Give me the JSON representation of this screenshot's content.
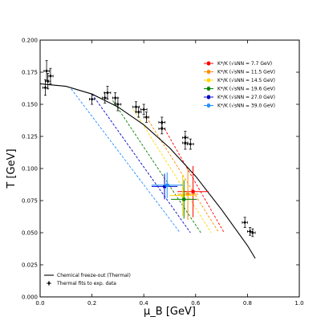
{
  "chart_data": {
    "type": "scatter",
    "xlabel": "μ_B [GeV]",
    "ylabel": "T [GeV]",
    "xlim": [
      0.0,
      1.0
    ],
    "ylim": [
      0.0,
      0.2
    ],
    "xticks": [
      "0.0",
      "0.2",
      "0.4",
      "0.6",
      "0.8",
      "1.0"
    ],
    "yticks": [
      "0.000",
      "0.025",
      "0.050",
      "0.075",
      "0.100",
      "0.125",
      "0.150",
      "0.175",
      "0.200"
    ],
    "grid": false,
    "legend_upper": {
      "placement": "top-right",
      "entries": [
        {
          "label": "K*/K (√sNN = 7.7 GeV)",
          "color": "#ff0000"
        },
        {
          "label": "K*/K (√sNN = 11.5 GeV)",
          "color": "#ff8c00"
        },
        {
          "label": "K*/K (√sNN = 14.5 GeV)",
          "color": "#ffd700"
        },
        {
          "label": "K*/K (√sNN = 19.6 GeV)",
          "color": "#008000"
        },
        {
          "label": "K*/K (√sNN = 27.0 GeV)",
          "color": "#0000cd"
        },
        {
          "label": "K*/K (√sNN = 39.0 GeV)",
          "color": "#1e90ff"
        }
      ]
    },
    "legend_lower": {
      "placement": "bottom-left",
      "entries": [
        {
          "label": "Chemical freeze-out (Thermal)",
          "style": "line"
        },
        {
          "label": "Thermal fits to exp. data",
          "style": "marker"
        }
      ]
    },
    "freezeout_curve": {
      "color": "#000000",
      "x": [
        0.0,
        0.1,
        0.2,
        0.3,
        0.4,
        0.5,
        0.6,
        0.7,
        0.8,
        0.83
      ],
      "y": [
        0.166,
        0.164,
        0.158,
        0.148,
        0.134,
        0.116,
        0.094,
        0.068,
        0.04,
        0.03
      ]
    },
    "thermal_fits": [
      {
        "x": 0.02,
        "y": 0.163,
        "xerr": 0.01,
        "yerr": 0.006
      },
      {
        "x": 0.025,
        "y": 0.176,
        "xerr": 0.01,
        "yerr": 0.008
      },
      {
        "x": 0.03,
        "y": 0.168,
        "xerr": 0.01,
        "yerr": 0.006
      },
      {
        "x": 0.04,
        "y": 0.172,
        "xerr": 0.01,
        "yerr": 0.006
      },
      {
        "x": 0.2,
        "y": 0.154,
        "xerr": 0.01,
        "yerr": 0.004
      },
      {
        "x": 0.25,
        "y": 0.155,
        "xerr": 0.01,
        "yerr": 0.004
      },
      {
        "x": 0.26,
        "y": 0.159,
        "xerr": 0.012,
        "yerr": 0.005
      },
      {
        "x": 0.29,
        "y": 0.155,
        "xerr": 0.01,
        "yerr": 0.004
      },
      {
        "x": 0.3,
        "y": 0.15,
        "xerr": 0.012,
        "yerr": 0.005
      },
      {
        "x": 0.37,
        "y": 0.148,
        "xerr": 0.012,
        "yerr": 0.004
      },
      {
        "x": 0.38,
        "y": 0.144,
        "xerr": 0.01,
        "yerr": 0.004
      },
      {
        "x": 0.4,
        "y": 0.146,
        "xerr": 0.012,
        "yerr": 0.004
      },
      {
        "x": 0.41,
        "y": 0.14,
        "xerr": 0.01,
        "yerr": 0.004
      },
      {
        "x": 0.47,
        "y": 0.136,
        "xerr": 0.012,
        "yerr": 0.004
      },
      {
        "x": 0.47,
        "y": 0.131,
        "xerr": 0.012,
        "yerr": 0.004
      },
      {
        "x": 0.56,
        "y": 0.12,
        "xerr": 0.01,
        "yerr": 0.005
      },
      {
        "x": 0.56,
        "y": 0.124,
        "xerr": 0.01,
        "yerr": 0.005
      },
      {
        "x": 0.58,
        "y": 0.119,
        "xerr": 0.012,
        "yerr": 0.004
      },
      {
        "x": 0.79,
        "y": 0.058,
        "xerr": 0.01,
        "yerr": 0.004
      },
      {
        "x": 0.81,
        "y": 0.051,
        "xerr": 0.01,
        "yerr": 0.003
      },
      {
        "x": 0.82,
        "y": 0.05,
        "xerr": 0.01,
        "yerr": 0.003
      }
    ],
    "kstar_points": [
      {
        "energy": "7.7",
        "x": 0.59,
        "y": 0.082,
        "xerr": 0.06,
        "yerr": 0.02,
        "color": "#ff0000"
      },
      {
        "energy": "11.5",
        "x": 0.57,
        "y": 0.08,
        "xerr": 0.04,
        "yerr": 0.02,
        "color": "#ff8c00"
      },
      {
        "energy": "14.5",
        "x": 0.55,
        "y": 0.079,
        "xerr": 0.05,
        "yerr": 0.016,
        "color": "#ffd700"
      },
      {
        "energy": "19.6",
        "x": 0.555,
        "y": 0.076,
        "xerr": 0.05,
        "yerr": 0.015,
        "color": "#008000"
      },
      {
        "energy": "27.0",
        "x": 0.48,
        "y": 0.086,
        "xerr": 0.05,
        "yerr": 0.01,
        "color": "#0000cd"
      },
      {
        "energy": "39.0",
        "x": 0.49,
        "y": 0.087,
        "xerr": 0.06,
        "yerr": 0.01,
        "color": "#1e90ff"
      }
    ],
    "dashed_lines": [
      {
        "energy": "7.7",
        "color": "#ff0000",
        "x": [
          0.48,
          0.71
        ],
        "y": [
          0.131,
          0.05
        ]
      },
      {
        "energy": "11.5",
        "color": "#ff8c00",
        "x": [
          0.41,
          0.69
        ],
        "y": [
          0.14,
          0.05
        ]
      },
      {
        "energy": "14.5",
        "color": "#ffd700",
        "x": [
          0.36,
          0.66
        ],
        "y": [
          0.146,
          0.05
        ]
      },
      {
        "energy": "19.6",
        "color": "#008000",
        "x": [
          0.28,
          0.62
        ],
        "y": [
          0.153,
          0.05
        ]
      },
      {
        "energy": "27.0",
        "color": "#0000cd",
        "x": [
          0.2,
          0.58
        ],
        "y": [
          0.158,
          0.05
        ]
      },
      {
        "energy": "39.0",
        "color": "#1e90ff",
        "x": [
          0.12,
          0.54
        ],
        "y": [
          0.162,
          0.05
        ]
      }
    ]
  }
}
